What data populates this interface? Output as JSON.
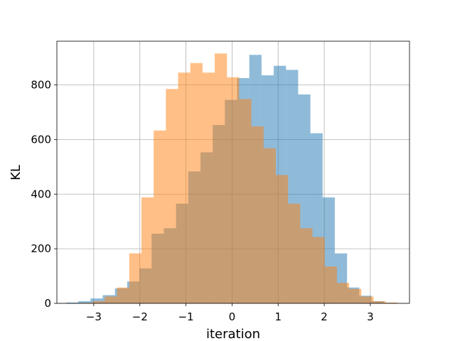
{
  "chart_data": {
    "type": "bar",
    "title": "",
    "xlabel": "iteration",
    "ylabel": "KL",
    "xlim": [
      -3.8,
      3.85
    ],
    "ylim": [
      0,
      960
    ],
    "xticks": [
      -3,
      -2,
      -1,
      0,
      1,
      2,
      3
    ],
    "yticks": [
      0,
      200,
      400,
      600,
      800
    ],
    "grid": true,
    "colors": {
      "blue": "#1f77b4",
      "orange": "#ff7f0e"
    },
    "opacity": 0.5,
    "bin_width": 0.265,
    "series": [
      {
        "color": "blue",
        "bins": [
          [
            -3.6,
            3
          ],
          [
            -3.335,
            8
          ],
          [
            -3.07,
            18
          ],
          [
            -2.805,
            30
          ],
          [
            -2.54,
            55
          ],
          [
            -2.275,
            80
          ],
          [
            -2.01,
            128
          ],
          [
            -1.745,
            255
          ],
          [
            -1.48,
            275
          ],
          [
            -1.215,
            365
          ],
          [
            -0.95,
            483
          ],
          [
            -0.685,
            553
          ],
          [
            -0.42,
            653
          ],
          [
            -0.155,
            745
          ],
          [
            0.11,
            825
          ],
          [
            0.375,
            910
          ],
          [
            0.64,
            835
          ],
          [
            0.905,
            870
          ],
          [
            1.17,
            855
          ],
          [
            1.435,
            765
          ],
          [
            1.7,
            623
          ],
          [
            1.965,
            388
          ],
          [
            2.23,
            183
          ],
          [
            2.495,
            58
          ],
          [
            2.76,
            28
          ],
          [
            3.025,
            8
          ],
          [
            3.29,
            2
          ]
        ]
      },
      {
        "color": "orange",
        "bins": [
          [
            -3.29,
            2
          ],
          [
            -3.025,
            8
          ],
          [
            -2.76,
            25
          ],
          [
            -2.495,
            58
          ],
          [
            -2.23,
            183
          ],
          [
            -1.965,
            388
          ],
          [
            -1.7,
            633
          ],
          [
            -1.435,
            785
          ],
          [
            -1.17,
            845
          ],
          [
            -0.905,
            880
          ],
          [
            -0.64,
            845
          ],
          [
            -0.375,
            915
          ],
          [
            -0.11,
            828
          ],
          [
            0.155,
            748
          ],
          [
            0.42,
            648
          ],
          [
            0.685,
            568
          ],
          [
            0.95,
            470
          ],
          [
            1.215,
            365
          ],
          [
            1.48,
            275
          ],
          [
            1.745,
            243
          ],
          [
            2.01,
            135
          ],
          [
            2.275,
            75
          ],
          [
            2.54,
            53
          ],
          [
            2.805,
            25
          ],
          [
            3.07,
            8
          ],
          [
            3.335,
            3
          ]
        ]
      }
    ]
  }
}
